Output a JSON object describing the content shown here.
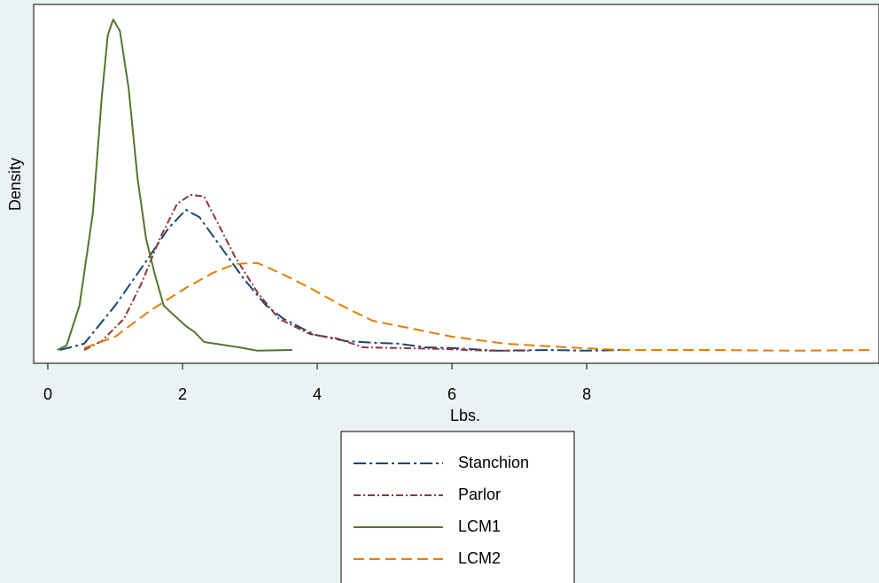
{
  "chart_data": {
    "type": "line",
    "x_label": "Lbs.",
    "y_label": "Density",
    "xlim": [
      -0.21,
      12.34
    ],
    "ylim": [
      -0.035,
      1.045
    ],
    "xticks": [
      0,
      2,
      4,
      6,
      8
    ],
    "legend": "bottom",
    "series": [
      {
        "name": "Stanchion",
        "color": "#1a476f",
        "dash": "14 4 3 4",
        "x": [
          0.18,
          0.54,
          1.0,
          1.46,
          1.79,
          2.05,
          2.25,
          2.58,
          2.91,
          3.24,
          3.5,
          3.96,
          4.42,
          4.82,
          5.21,
          5.61,
          6.0,
          6.66,
          7.45,
          7.97,
          8.57
        ],
        "values": [
          0.005,
          0.024,
          0.139,
          0.272,
          0.371,
          0.427,
          0.405,
          0.312,
          0.219,
          0.139,
          0.099,
          0.051,
          0.032,
          0.027,
          0.024,
          0.013,
          0.011,
          0.003,
          0.005,
          0.003,
          0.005
        ]
      },
      {
        "name": "Parlor",
        "color": "#90353b",
        "dash": "8 3 2 3",
        "x": [
          0.54,
          0.8,
          1.13,
          1.39,
          1.66,
          1.92,
          2.12,
          2.32,
          2.51,
          2.78,
          3.11,
          3.43,
          3.89,
          4.29,
          4.68,
          5.21,
          5.87,
          6.53,
          7.18
        ],
        "values": [
          0.005,
          0.032,
          0.099,
          0.205,
          0.339,
          0.445,
          0.472,
          0.467,
          0.392,
          0.285,
          0.179,
          0.099,
          0.053,
          0.04,
          0.013,
          0.011,
          0.008,
          0.003,
          0.003
        ]
      },
      {
        "name": "LCM1",
        "color": "#55752f",
        "dash": "none",
        "x": [
          0.14,
          0.28,
          0.47,
          0.67,
          0.8,
          0.89,
          0.97,
          1.07,
          1.2,
          1.33,
          1.46,
          1.59,
          1.72,
          1.86,
          2.05,
          2.18,
          2.32,
          2.58,
          2.84,
          3.11,
          3.63
        ],
        "values": [
          0.005,
          0.019,
          0.139,
          0.419,
          0.765,
          0.952,
          1.0,
          0.965,
          0.792,
          0.525,
          0.339,
          0.232,
          0.139,
          0.112,
          0.077,
          0.059,
          0.029,
          0.021,
          0.013,
          0.003,
          0.005
        ]
      },
      {
        "name": "LCM2",
        "color": "#e37e00",
        "dash": "12 6",
        "x": [
          0.54,
          1.0,
          1.53,
          2.05,
          2.45,
          2.78,
          3.11,
          3.5,
          3.89,
          4.36,
          4.82,
          5.34,
          6.0,
          6.79,
          7.71,
          8.5,
          9.82,
          11.13,
          12.25
        ],
        "values": [
          0.011,
          0.045,
          0.125,
          0.192,
          0.237,
          0.264,
          0.267,
          0.232,
          0.192,
          0.139,
          0.093,
          0.072,
          0.045,
          0.024,
          0.013,
          0.005,
          0.005,
          0.003,
          0.005
        ]
      }
    ]
  }
}
